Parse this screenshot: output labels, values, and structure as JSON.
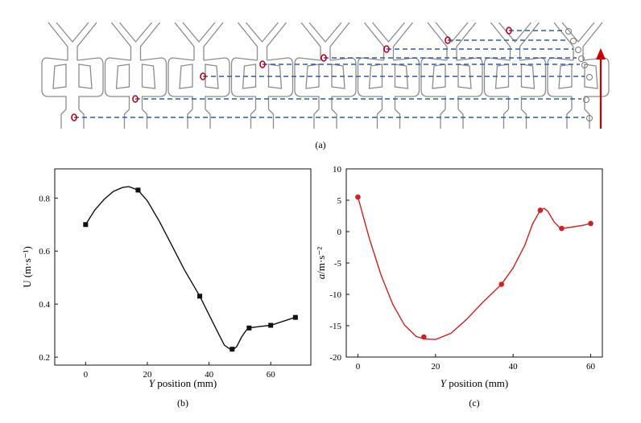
{
  "panel_a": {
    "caption": "(a)",
    "arrow_color": "#cc0000",
    "dash_color": "#2a5fa8",
    "bubble_color": "#c0001a"
  },
  "chart_data": [
    {
      "type": "line",
      "panel": "(b)",
      "title": "",
      "xlabel_italic": "Y",
      "xlabel_rest": " position (mm)",
      "ylabel": "U (m·s⁻¹)",
      "xlim": [
        -10,
        73
      ],
      "ylim": [
        0.17,
        0.91
      ],
      "xticks": [
        0,
        20,
        40,
        60
      ],
      "yticks": [
        0.2,
        0.4,
        0.6,
        0.8
      ],
      "tick_labels_x": [
        "0",
        "20",
        "40",
        "60"
      ],
      "tick_labels_y": [
        "0.2",
        "0.4",
        "0.6",
        "0.8"
      ],
      "color": "#111111",
      "marker": "square",
      "x": [
        0,
        17,
        37,
        47.5,
        53,
        60,
        68
      ],
      "y": [
        0.7,
        0.83,
        0.43,
        0.23,
        0.31,
        0.32,
        0.35
      ],
      "curve_x": [
        0,
        3,
        6,
        9,
        12,
        14,
        17,
        20,
        24,
        28,
        32,
        37,
        40,
        43,
        45,
        47.5,
        49,
        50.5,
        52,
        53,
        56,
        60,
        64,
        68
      ],
      "curve_y": [
        0.7,
        0.755,
        0.795,
        0.825,
        0.84,
        0.843,
        0.83,
        0.79,
        0.71,
        0.62,
        0.53,
        0.43,
        0.36,
        0.29,
        0.245,
        0.225,
        0.24,
        0.275,
        0.3,
        0.31,
        0.315,
        0.32,
        0.335,
        0.35
      ]
    },
    {
      "type": "line",
      "panel": "(c)",
      "title": "",
      "xlabel_italic": "Y",
      "xlabel_rest": " position (mm)",
      "ylabel_italic": "a",
      "ylabel_rest": "/m·s⁻²",
      "xlim": [
        -3,
        63
      ],
      "ylim": [
        -20,
        10
      ],
      "xticks": [
        0,
        20,
        40,
        60
      ],
      "yticks": [
        -20,
        -15,
        -10,
        -5,
        0,
        5,
        10
      ],
      "tick_labels_x": [
        "0",
        "20",
        "40",
        "60"
      ],
      "tick_labels_y": [
        "-20",
        "-15",
        "-10",
        "-5",
        "0",
        "5",
        "10"
      ],
      "color": "#d42020",
      "marker": "circle",
      "x": [
        0,
        17,
        37,
        47,
        52.5,
        60
      ],
      "y": [
        5.5,
        -16.8,
        -8.4,
        3.4,
        0.5,
        1.3
      ],
      "curve_x": [
        0,
        3,
        6,
        9,
        12,
        15,
        17,
        20,
        24,
        28,
        32,
        37,
        40,
        43,
        45,
        47,
        48,
        49,
        50.5,
        52,
        52.5,
        55,
        58,
        60
      ],
      "curve_y": [
        5.5,
        -1.2,
        -7.0,
        -11.6,
        -14.9,
        -16.7,
        -17.1,
        -17.2,
        -16.2,
        -14.0,
        -11.4,
        -8.4,
        -5.8,
        -2.2,
        1.2,
        3.4,
        3.7,
        3.2,
        1.6,
        0.6,
        0.5,
        0.7,
        1.0,
        1.3
      ]
    }
  ]
}
